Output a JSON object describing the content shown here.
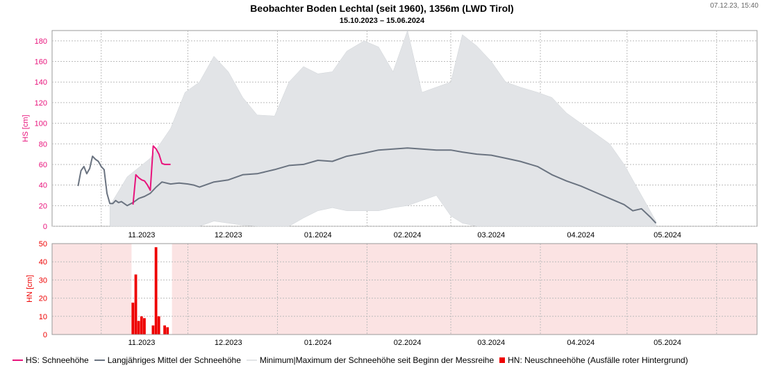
{
  "title": "Beobachter Boden Lechtal (seit 1960), 1356m (LWD Tirol)",
  "subtitle": "15.10.2023 – 15.06.2024",
  "timestamp": "07.12.23, 15:40",
  "colors": {
    "hs": "#e8127b",
    "mean": "#6a7380",
    "range": "#e2e4e7",
    "hn": "#ee0000",
    "hn_missing_bg": "#fbe3e3",
    "grid": "#bbbbbb"
  },
  "legend": {
    "hs": "HS: Schneehöhe",
    "mean": "Langjähriges Mittel der Schneehöhe",
    "range": "Minimum|Maximum der Schneehöhe seit Beginn der Messreihe",
    "hn": "HN: Neuschneehöhe (Ausfälle roter Hintergrund)"
  },
  "chart_data": [
    {
      "type": "line",
      "ylabel": "HS [cm]",
      "ylim": [
        0,
        190
      ],
      "yticks": [
        0,
        20,
        40,
        60,
        80,
        100,
        120,
        140,
        160,
        180
      ],
      "xticks": [
        "11.2023",
        "12.2023",
        "01.2024",
        "02.2024",
        "03.2024",
        "04.2024",
        "05.2024"
      ],
      "grid": true,
      "series": [
        {
          "name": "HS: Schneehöhe",
          "x": [
            "2023-11-12",
            "2023-11-13",
            "2023-11-14",
            "2023-11-15",
            "2023-11-16",
            "2023-11-17",
            "2023-11-18",
            "2023-11-19",
            "2023-11-20",
            "2023-11-21",
            "2023-11-22",
            "2023-11-23",
            "2023-11-24",
            "2023-11-25"
          ],
          "y": [
            21,
            50,
            47,
            45,
            44,
            40,
            35,
            78,
            75,
            70,
            61,
            60,
            60,
            60
          ]
        },
        {
          "name": "Langjähriges Mittel der Schneehöhe",
          "x": [
            "2023-10-24",
            "2023-10-25",
            "2023-10-26",
            "2023-10-27",
            "2023-10-28",
            "2023-10-29",
            "2023-10-30",
            "2023-10-31",
            "2023-11-01",
            "2023-11-02",
            "2023-11-03",
            "2023-11-04",
            "2023-11-05",
            "2023-11-06",
            "2023-11-07",
            "2023-11-08",
            "2023-11-10",
            "2023-11-12",
            "2023-11-14",
            "2023-11-16",
            "2023-11-18",
            "2023-11-20",
            "2023-11-22",
            "2023-11-25",
            "2023-11-28",
            "2023-12-01",
            "2023-12-03",
            "2023-12-05",
            "2023-12-10",
            "2023-12-15",
            "2023-12-20",
            "2023-12-25",
            "2023-12-31",
            "2024-01-05",
            "2024-01-10",
            "2024-01-15",
            "2024-01-20",
            "2024-01-25",
            "2024-01-31",
            "2024-02-05",
            "2024-02-10",
            "2024-02-15",
            "2024-02-20",
            "2024-02-25",
            "2024-03-01",
            "2024-03-05",
            "2024-03-10",
            "2024-03-15",
            "2024-03-20",
            "2024-03-25",
            "2024-03-31",
            "2024-04-05",
            "2024-04-10",
            "2024-04-15",
            "2024-04-20",
            "2024-04-25",
            "2024-04-30",
            "2024-05-03",
            "2024-05-06",
            "2024-05-09",
            "2024-05-11"
          ],
          "y": [
            39,
            54,
            58,
            51,
            56,
            68,
            65,
            63,
            58,
            55,
            32,
            22,
            22,
            25,
            23,
            24,
            20,
            23,
            27,
            29,
            32,
            38,
            43,
            41,
            42,
            41,
            40,
            38,
            43,
            45,
            50,
            51,
            55,
            59,
            60,
            64,
            63,
            68,
            71,
            74,
            75,
            76,
            75,
            74,
            74,
            72,
            70,
            69,
            66,
            63,
            58,
            50,
            44,
            39,
            33,
            27,
            21,
            15,
            17,
            9,
            3
          ]
        }
      ],
      "range_band": {
        "name": "Minimum|Maximum der Schneehöhe seit Beginn der Messreihe",
        "x": [
          "2023-11-04",
          "2023-11-10",
          "2023-11-18",
          "2023-11-25",
          "2023-11-30",
          "2023-12-05",
          "2023-12-10",
          "2023-12-15",
          "2023-12-20",
          "2023-12-25",
          "2023-12-31",
          "2024-01-05",
          "2024-01-10",
          "2024-01-15",
          "2024-01-20",
          "2024-01-25",
          "2024-01-31",
          "2024-02-05",
          "2024-02-10",
          "2024-02-15",
          "2024-02-20",
          "2024-02-25",
          "2024-03-01",
          "2024-03-05",
          "2024-03-10",
          "2024-03-15",
          "2024-03-20",
          "2024-03-25",
          "2024-03-31",
          "2024-04-05",
          "2024-04-10",
          "2024-04-15",
          "2024-04-20",
          "2024-04-25",
          "2024-04-30",
          "2024-05-05",
          "2024-05-11"
        ],
        "max": [
          20,
          48,
          66,
          95,
          130,
          140,
          165,
          150,
          125,
          108,
          107,
          140,
          155,
          148,
          150,
          170,
          180,
          174,
          150,
          190,
          130,
          135,
          140,
          186,
          175,
          160,
          140,
          135,
          130,
          125,
          110,
          100,
          90,
          80,
          60,
          35,
          5
        ],
        "min": [
          0,
          0,
          0,
          0,
          0,
          0,
          5,
          3,
          1,
          0,
          0,
          0,
          8,
          15,
          18,
          15,
          15,
          15,
          18,
          20,
          25,
          30,
          10,
          3,
          0,
          0,
          0,
          0,
          0,
          0,
          0,
          0,
          0,
          0,
          0,
          0,
          0
        ]
      }
    },
    {
      "type": "bar",
      "ylabel": "HN [cm]",
      "ylim": [
        0,
        50
      ],
      "yticks": [
        0,
        10,
        20,
        30,
        40,
        50
      ],
      "xticks": [
        "11.2023",
        "12.2023",
        "01.2024",
        "02.2024",
        "03.2024",
        "04.2024",
        "05.2024"
      ],
      "grid": true,
      "observed_period": [
        "2023-11-12",
        "2023-11-25"
      ],
      "series": [
        {
          "name": "HN: Neuschneehöhe",
          "x": [
            "2023-11-12",
            "2023-11-13",
            "2023-11-14",
            "2023-11-15",
            "2023-11-16",
            "2023-11-19",
            "2023-11-20",
            "2023-11-21",
            "2023-11-23",
            "2023-11-24"
          ],
          "y": [
            17.5,
            33,
            7.5,
            10,
            9,
            5,
            48,
            10,
            5,
            4
          ]
        }
      ]
    }
  ]
}
